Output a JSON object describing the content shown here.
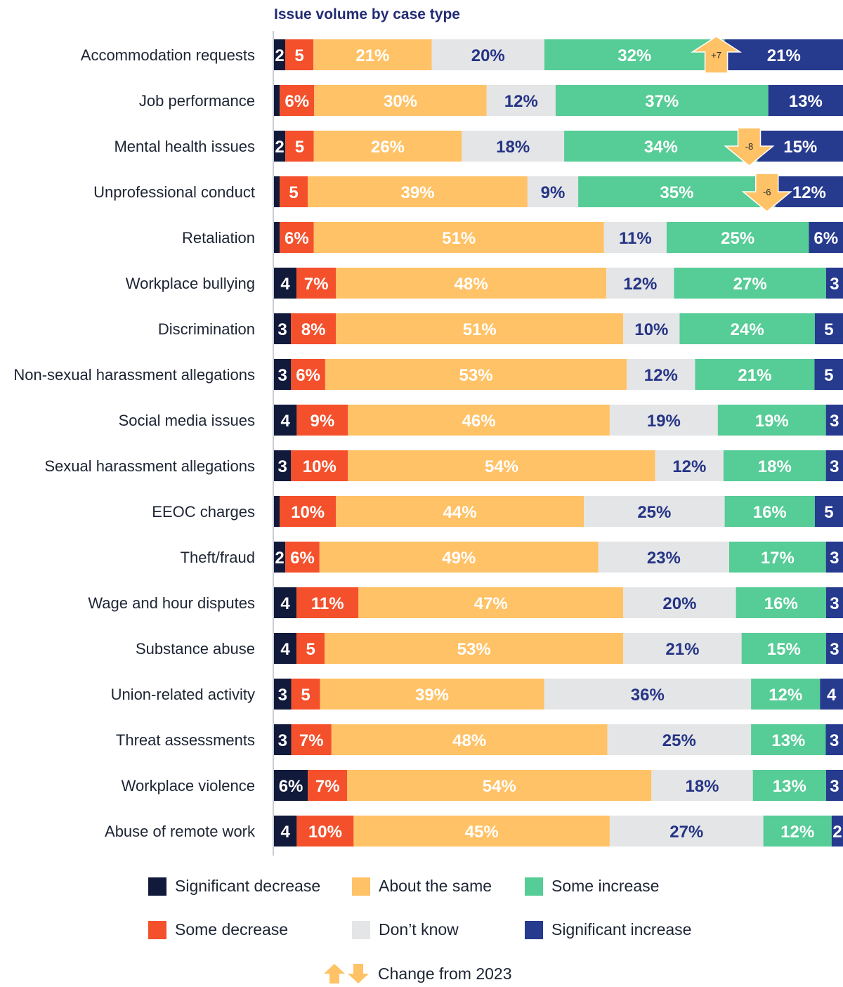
{
  "chart_data": {
    "type": "bar",
    "orientation": "horizontal",
    "stacked": true,
    "title": "Issue volume by case type",
    "segments": [
      {
        "name": "Significant decrease",
        "color": "#111a3a",
        "text_color": "#ffffff"
      },
      {
        "name": "Some decrease",
        "color": "#f4502c",
        "text_color": "#ffffff"
      },
      {
        "name": "About the same",
        "color": "#ffc266",
        "text_color": "#ffffff"
      },
      {
        "name": "Don’t know",
        "color": "#e4e5e7",
        "text_color": "#253485"
      },
      {
        "name": "Some increase",
        "color": "#56cc96",
        "text_color": "#ffffff"
      },
      {
        "name": "Significant increase",
        "color": "#263a8e",
        "text_color": "#ffffff"
      }
    ],
    "rows": [
      {
        "category": "Accommodation requests",
        "values": [
          2,
          5,
          21,
          20,
          32,
          21
        ],
        "labels": [
          "2",
          "5",
          "21%",
          "20%",
          "32%",
          "21%"
        ],
        "change": {
          "value": "+7",
          "direction": "up"
        }
      },
      {
        "category": "Job performance",
        "values": [
          1,
          6,
          30,
          12,
          37,
          13
        ],
        "labels": [
          "",
          "6%",
          "30%",
          "12%",
          "37%",
          "13%"
        ]
      },
      {
        "category": "Mental health issues",
        "values": [
          2,
          5,
          26,
          18,
          34,
          15
        ],
        "labels": [
          "2",
          "5",
          "26%",
          "18%",
          "34%",
          "15%"
        ],
        "change": {
          "value": "-8",
          "direction": "down"
        }
      },
      {
        "category": "Unprofessional conduct",
        "values": [
          1,
          5,
          39,
          9,
          35,
          12
        ],
        "labels": [
          "",
          "5",
          "39%",
          "9%",
          "35%",
          "12%"
        ],
        "change": {
          "value": "-6",
          "direction": "down"
        }
      },
      {
        "category": "Retaliation",
        "values": [
          1,
          6,
          51,
          11,
          25,
          6
        ],
        "labels": [
          "",
          "6%",
          "51%",
          "11%",
          "25%",
          "6%"
        ]
      },
      {
        "category": "Workplace bullying",
        "values": [
          4,
          7,
          48,
          12,
          27,
          3
        ],
        "labels": [
          "4",
          "7%",
          "48%",
          "12%",
          "27%",
          "3"
        ]
      },
      {
        "category": "Discrimination",
        "values": [
          3,
          8,
          51,
          10,
          24,
          5
        ],
        "labels": [
          "3",
          "8%",
          "51%",
          "10%",
          "24%",
          "5"
        ]
      },
      {
        "category": "Non-sexual harassment allegations",
        "values": [
          3,
          6,
          53,
          12,
          21,
          5
        ],
        "labels": [
          "3",
          "6%",
          "53%",
          "12%",
          "21%",
          "5"
        ]
      },
      {
        "category": "Social media issues",
        "values": [
          4,
          9,
          46,
          19,
          19,
          3
        ],
        "labels": [
          "4",
          "9%",
          "46%",
          "19%",
          "19%",
          "3"
        ]
      },
      {
        "category": "Sexual harassment allegations",
        "values": [
          3,
          10,
          54,
          12,
          18,
          3
        ],
        "labels": [
          "3",
          "10%",
          "54%",
          "12%",
          "18%",
          "3"
        ]
      },
      {
        "category": "EEOC charges",
        "values": [
          1,
          10,
          44,
          25,
          16,
          5
        ],
        "labels": [
          "",
          "10%",
          "44%",
          "25%",
          "16%",
          "5"
        ]
      },
      {
        "category": "Theft/fraud",
        "values": [
          2,
          6,
          49,
          23,
          17,
          3
        ],
        "labels": [
          "2",
          "6%",
          "49%",
          "23%",
          "17%",
          "3"
        ]
      },
      {
        "category": "Wage and hour disputes",
        "values": [
          4,
          11,
          47,
          20,
          16,
          3
        ],
        "labels": [
          "4",
          "11%",
          "47%",
          "20%",
          "16%",
          "3"
        ]
      },
      {
        "category": "Substance abuse",
        "values": [
          4,
          5,
          53,
          21,
          15,
          3
        ],
        "labels": [
          "4",
          "5",
          "53%",
          "21%",
          "15%",
          "3"
        ]
      },
      {
        "category": "Union-related activity",
        "values": [
          3,
          5,
          39,
          36,
          12,
          4
        ],
        "labels": [
          "3",
          "5",
          "39%",
          "36%",
          "12%",
          "4"
        ]
      },
      {
        "category": "Threat assessments",
        "values": [
          3,
          7,
          48,
          25,
          13,
          3
        ],
        "labels": [
          "3",
          "7%",
          "48%",
          "25%",
          "13%",
          "3"
        ]
      },
      {
        "category": "Workplace violence",
        "values": [
          6,
          7,
          54,
          18,
          13,
          3
        ],
        "labels": [
          "6%",
          "7%",
          "54%",
          "18%",
          "13%",
          "3"
        ]
      },
      {
        "category": "Abuse of remote work",
        "values": [
          4,
          10,
          45,
          27,
          12,
          2
        ],
        "labels": [
          "4",
          "10%",
          "45%",
          "27%",
          "12%",
          "2"
        ]
      }
    ],
    "change_color": "#ffc266",
    "legend_position": "bottom"
  },
  "legend": {
    "items": [
      {
        "label": "Significant decrease",
        "color": "#111a3a"
      },
      {
        "label": "About the same",
        "color": "#ffc266"
      },
      {
        "label": "Some increase",
        "color": "#56cc96"
      },
      {
        "label": "Some decrease",
        "color": "#f4502c"
      },
      {
        "label": "Don’t know",
        "color": "#e4e5e7"
      },
      {
        "label": "Significant increase",
        "color": "#263a8e"
      }
    ],
    "change_label": "Change from 2023"
  }
}
